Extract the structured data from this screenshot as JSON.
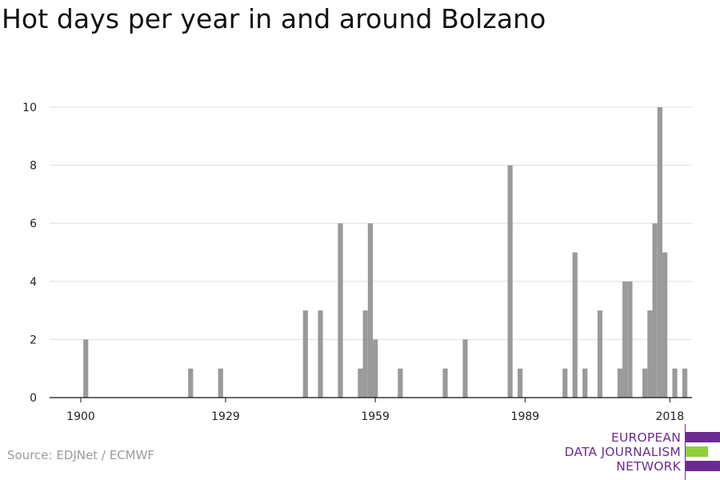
{
  "title": "Hot days per year in and around Bolzano",
  "source": "Source: EDJNet / ECMWF",
  "logo": {
    "lines": [
      "EUROPEAN",
      "DATA JOURNALISM",
      "NETWORK"
    ],
    "colors": {
      "primary": "#6b2c91",
      "accent": "#8fd13a"
    }
  },
  "colors": {
    "bar": "#9a9a9a",
    "grid": "#dddddd",
    "axis": "#111111"
  },
  "chart_data": {
    "type": "bar",
    "title": "Hot days per year in and around Bolzano",
    "xlabel": "",
    "ylabel": "",
    "x_ticks": [
      1900,
      1929,
      1959,
      1989,
      2018
    ],
    "y_ticks": [
      0,
      2,
      4,
      6,
      8,
      10
    ],
    "xlim": [
      1894,
      2023
    ],
    "ylim": [
      0,
      10
    ],
    "grid": true,
    "x": [
      1901,
      1922,
      1928,
      1945,
      1948,
      1952,
      1956,
      1957,
      1958,
      1959,
      1964,
      1973,
      1977,
      1986,
      1988,
      1997,
      1999,
      2001,
      2004,
      2008,
      2009,
      2010,
      2013,
      2014,
      2015,
      2016,
      2017,
      2019,
      2021
    ],
    "values": [
      2,
      1,
      1,
      3,
      3,
      6,
      1,
      3,
      6,
      2,
      1,
      1,
      2,
      8,
      1,
      1,
      5,
      1,
      3,
      1,
      4,
      4,
      1,
      3,
      6,
      10,
      5,
      1,
      1
    ]
  }
}
